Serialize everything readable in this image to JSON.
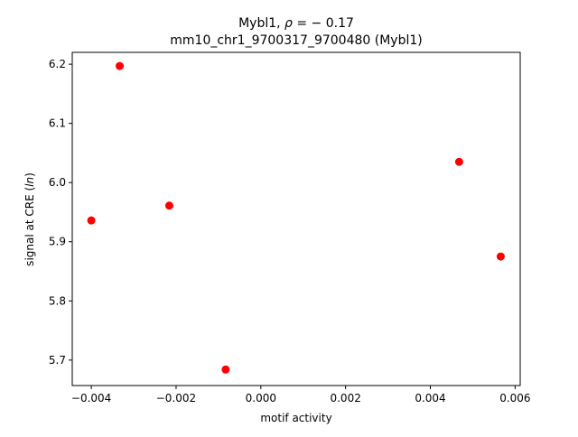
{
  "chart_data": {
    "type": "scatter",
    "title_line1": "Mybl1, ρ = − 0.17",
    "title_line2": "mm10_chr1_9700317_9700480 (Mybl1)",
    "xlabel": "motif activity",
    "ylabel": "signal at CRE (ln)",
    "xlim": [
      -0.00445,
      0.00612
    ],
    "ylim": [
      5.657,
      6.22
    ],
    "xticks": [
      -0.004,
      -0.002,
      0.0,
      0.002,
      0.004,
      0.006
    ],
    "xtick_labels": [
      "−0.004",
      "−0.002",
      "0.000",
      "0.002",
      "0.004",
      "0.006"
    ],
    "yticks": [
      5.7,
      5.8,
      5.9,
      6.0,
      6.1,
      6.2
    ],
    "ytick_labels": [
      "5.7",
      "5.8",
      "5.9",
      "6.0",
      "6.1",
      "6.2"
    ],
    "grid": false,
    "marker_color": "#ff0000",
    "points": [
      {
        "x": -0.004,
        "y": 5.936
      },
      {
        "x": -0.00333,
        "y": 6.197
      },
      {
        "x": -0.00216,
        "y": 5.961
      },
      {
        "x": -0.00083,
        "y": 5.684
      },
      {
        "x": 0.00468,
        "y": 6.035
      },
      {
        "x": 0.00566,
        "y": 5.875
      }
    ]
  }
}
